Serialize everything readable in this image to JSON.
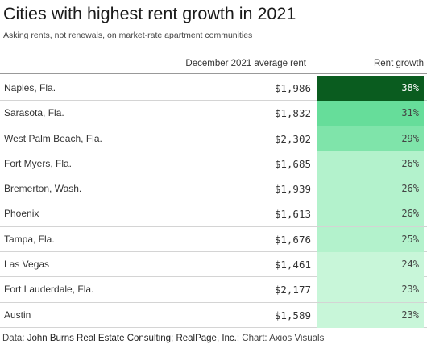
{
  "title": "Cities with highest rent growth in 2021",
  "subtitle": "Asking rents, not renewals, on market-rate apartment communities",
  "columns": {
    "rent": "December 2021 average rent",
    "growth": "Rent growth"
  },
  "colors": {
    "growth_scale": [
      "#0a5c1f",
      "#15a84a",
      "#2fc36a",
      "#66dd9a",
      "#7fe4aa",
      "#91e9b8",
      "#b3f2cc",
      "#c8f6d9"
    ],
    "text_dark_bg": "#ffffff",
    "text_light_bg": "#444444"
  },
  "footer": {
    "prefix": "Data: ",
    "source1": "John Burns Real Estate Consulting",
    "sep1": "; ",
    "source2": "RealPage, Inc.",
    "suffix": "; Chart: Axios Visuals"
  },
  "chart_data": {
    "type": "table",
    "title": "Cities with highest rent growth in 2021",
    "subtitle": "Asking rents, not renewals, on market-rate apartment communities",
    "columns": [
      "",
      "December 2021 average rent",
      "Rent growth"
    ],
    "rows": [
      {
        "city": "Naples, Fla.",
        "rent": "$1,986",
        "growth": "38%",
        "value": 38
      },
      {
        "city": "Sarasota, Fla.",
        "rent": "$1,832",
        "growth": "31%",
        "value": 31
      },
      {
        "city": "West Palm Beach, Fla.",
        "rent": "$2,302",
        "growth": "29%",
        "value": 29
      },
      {
        "city": "Fort Myers, Fla.",
        "rent": "$1,685",
        "growth": "26%",
        "value": 26
      },
      {
        "city": "Bremerton, Wash.",
        "rent": "$1,939",
        "growth": "26%",
        "value": 26
      },
      {
        "city": "Phoenix",
        "rent": "$1,613",
        "growth": "26%",
        "value": 26
      },
      {
        "city": "Tampa, Fla.",
        "rent": "$1,676",
        "growth": "25%",
        "value": 25
      },
      {
        "city": "Las Vegas",
        "rent": "$1,461",
        "growth": "24%",
        "value": 24
      },
      {
        "city": "Fort Lauderdale, Fla.",
        "rent": "$2,177",
        "growth": "23%",
        "value": 23
      },
      {
        "city": "Austin",
        "rent": "$1,589",
        "growth": "23%",
        "value": 23
      }
    ]
  }
}
